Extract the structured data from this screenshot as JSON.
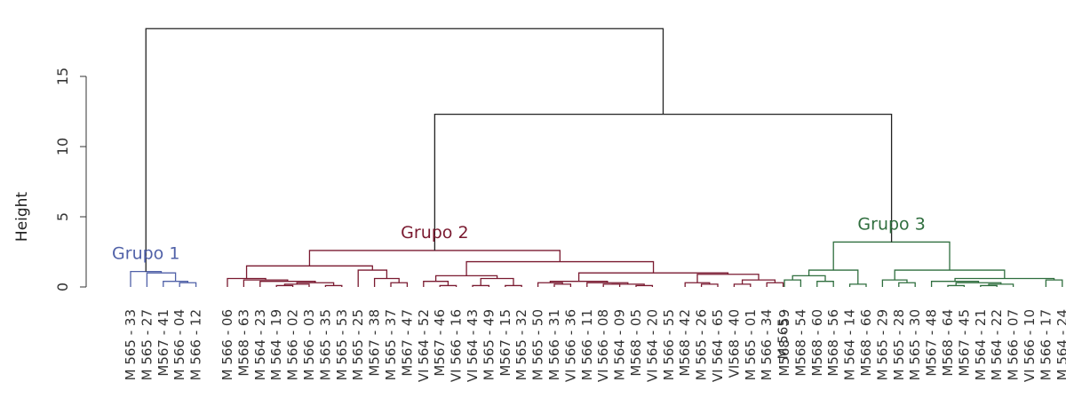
{
  "chart_data": {
    "type": "dendrogram",
    "ylabel": "Height",
    "ylim": [
      0,
      18.5
    ],
    "yticks": [
      0,
      5,
      10,
      15
    ],
    "groups": [
      {
        "label": "Grupo 1",
        "color": "#5061a8"
      },
      {
        "label": "Grupo 2",
        "color": "#7a1a30"
      },
      {
        "label": "Grupo 3",
        "color": "#2f6e3e"
      }
    ],
    "leaves": [
      {
        "label": "M 565 - 33",
        "group": 0
      },
      {
        "label": "M 565 - 27",
        "group": 0
      },
      {
        "label": "M567 - 41",
        "group": 0
      },
      {
        "label": "M 566 - 04",
        "group": 0
      },
      {
        "label": "M 566 - 12",
        "group": 0
      },
      {
        "label": "M 566 - 06",
        "group": 1
      },
      {
        "label": "M568 - 63",
        "group": 1
      },
      {
        "label": "M 564 - 23",
        "group": 1
      },
      {
        "label": "M 564 - 19",
        "group": 1
      },
      {
        "label": "M 566 - 02",
        "group": 1
      },
      {
        "label": "M 566 - 03",
        "group": 1
      },
      {
        "label": "M 565 - 35",
        "group": 1
      },
      {
        "label": "M 565 - 53",
        "group": 1
      },
      {
        "label": "M 565 - 25",
        "group": 1
      },
      {
        "label": "M567 - 38",
        "group": 1
      },
      {
        "label": "M 565 - 37",
        "group": 1
      },
      {
        "label": "M567 - 47",
        "group": 1
      },
      {
        "label": "VI 564 - 52",
        "group": 1
      },
      {
        "label": "M567 - 46",
        "group": 1
      },
      {
        "label": "VI 566 - 16",
        "group": 1
      },
      {
        "label": "VI 564 - 43",
        "group": 1
      },
      {
        "label": "M 565 - 49",
        "group": 1
      },
      {
        "label": "M567 - 15",
        "group": 1
      },
      {
        "label": "M 565 - 32",
        "group": 1
      },
      {
        "label": "M 565 - 50",
        "group": 1
      },
      {
        "label": "M 566 - 31",
        "group": 1
      },
      {
        "label": "VI 566 - 36",
        "group": 1
      },
      {
        "label": "M 566 - 11",
        "group": 1
      },
      {
        "label": "VI 566 - 08",
        "group": 1
      },
      {
        "label": "M 564 - 09",
        "group": 1
      },
      {
        "label": "M568 - 05",
        "group": 1
      },
      {
        "label": "VI 564 - 20",
        "group": 1
      },
      {
        "label": "M 566 - 55",
        "group": 1
      },
      {
        "label": "M568 - 42",
        "group": 1
      },
      {
        "label": "M 565 - 26",
        "group": 1
      },
      {
        "label": "VI 564 - 65",
        "group": 1
      },
      {
        "label": "VI568 - 40",
        "group": 1
      },
      {
        "label": "M 565 - 01",
        "group": 1
      },
      {
        "label": "M 566 - 34",
        "group": 1
      },
      {
        "label": "M 565 -",
        "group": 1
      },
      {
        "label": "M568 - 59",
        "group": 2
      },
      {
        "label": "M568 - 54",
        "group": 2
      },
      {
        "label": "M568 - 60",
        "group": 2
      },
      {
        "label": "M568 - 56",
        "group": 2
      },
      {
        "label": "M 564 - 14",
        "group": 2
      },
      {
        "label": "M568 - 66",
        "group": 2
      },
      {
        "label": "M 565 - 29",
        "group": 2
      },
      {
        "label": "M 565 - 28",
        "group": 2
      },
      {
        "label": "M 565 - 30",
        "group": 2
      },
      {
        "label": "M567 - 48",
        "group": 2
      },
      {
        "label": "M568 - 64",
        "group": 2
      },
      {
        "label": "M567 - 45",
        "group": 2
      },
      {
        "label": "M 564 - 21",
        "group": 2
      },
      {
        "label": "M 564 - 22",
        "group": 2
      },
      {
        "label": "M 566 - 07",
        "group": 2
      },
      {
        "label": "VI 566 - 10",
        "group": 2
      },
      {
        "label": "M 566 - 17",
        "group": 2
      },
      {
        "label": "M 564 - 24",
        "group": 2
      }
    ],
    "merges": [
      {
        "a": 3,
        "b": 4,
        "height": 0.3
      },
      {
        "a": 2,
        "b": -1,
        "height": 0.4
      },
      {
        "a": 1,
        "b": -2,
        "height": 1.0
      },
      {
        "a": 0,
        "b": -3,
        "height": 1.1
      },
      {
        "a": 8,
        "b": 9,
        "height": 0.1
      },
      {
        "a": 10,
        "b": -5,
        "height": 0.2
      },
      {
        "a": 11,
        "b": 12,
        "height": 0.1
      },
      {
        "a": -6,
        "b": -7,
        "height": 0.3
      },
      {
        "a": 7,
        "b": -8,
        "height": 0.4
      },
      {
        "a": 6,
        "b": -9,
        "height": 0.5
      },
      {
        "a": 5,
        "b": -10,
        "height": 0.6
      },
      {
        "a": 15,
        "b": 16,
        "height": 0.3
      },
      {
        "a": 14,
        "b": -12,
        "height": 0.6
      },
      {
        "a": 13,
        "b": -13,
        "height": 1.2
      },
      {
        "a": -11,
        "b": -14,
        "height": 1.5
      },
      {
        "a": 18,
        "b": 19,
        "height": 0.1
      },
      {
        "a": 17,
        "b": -16,
        "height": 0.4
      },
      {
        "a": 20,
        "b": 21,
        "height": 0.1
      },
      {
        "a": 22,
        "b": 23,
        "height": 0.1
      },
      {
        "a": -18,
        "b": -19,
        "height": 0.6
      },
      {
        "a": -17,
        "b": -20,
        "height": 0.8
      },
      {
        "a": 25,
        "b": 26,
        "height": 0.2
      },
      {
        "a": 24,
        "b": -22,
        "height": 0.3
      },
      {
        "a": 28,
        "b": 29,
        "height": 0.2
      },
      {
        "a": 30,
        "b": 31,
        "height": 0.1
      },
      {
        "a": -24,
        "b": -25,
        "height": 0.2
      },
      {
        "a": 27,
        "b": -26,
        "height": 0.3
      },
      {
        "a": -23,
        "b": -27,
        "height": 0.4
      },
      {
        "a": 34,
        "b": 35,
        "height": 0.2
      },
      {
        "a": 33,
        "b": -29,
        "height": 0.3
      },
      {
        "a": 36,
        "b": 37,
        "height": 0.2
      },
      {
        "a": 38,
        "b": 39,
        "height": 0.3
      },
      {
        "a": -31,
        "b": -32,
        "height": 0.5
      },
      {
        "a": -30,
        "b": -33,
        "height": 0.9
      },
      {
        "a": -28,
        "b": -34,
        "height": 1.0
      },
      {
        "a": -21,
        "b": -35,
        "height": 1.8
      },
      {
        "a": -15,
        "b": -36,
        "height": 2.6
      },
      {
        "a": 40,
        "b": 41,
        "height": 0.5
      },
      {
        "a": 42,
        "b": 43,
        "height": 0.4
      },
      {
        "a": 44,
        "b": 45,
        "height": 0.2
      },
      {
        "a": -38,
        "b": -39,
        "height": 0.8
      },
      {
        "a": -40,
        "b": -41,
        "height": 1.2
      },
      {
        "a": 47,
        "b": 48,
        "height": 0.3
      },
      {
        "a": 46,
        "b": -43,
        "height": 0.5
      },
      {
        "a": 50,
        "b": 51,
        "height": 0.1
      },
      {
        "a": 52,
        "b": 53,
        "height": 0.1
      },
      {
        "a": 54,
        "b": -46,
        "height": 0.2
      },
      {
        "a": -45,
        "b": -47,
        "height": 0.3
      },
      {
        "a": 49,
        "b": -48,
        "height": 0.4
      },
      {
        "a": 56,
        "b": 57,
        "height": 0.5
      },
      {
        "a": -49,
        "b": -50,
        "height": 0.6
      },
      {
        "a": -44,
        "b": -51,
        "height": 1.2
      },
      {
        "a": -42,
        "b": -52,
        "height": 3.2
      },
      {
        "a": -37,
        "b": -53,
        "height": 12.3
      },
      {
        "a": -4,
        "b": -54,
        "height": 18.4
      }
    ]
  }
}
